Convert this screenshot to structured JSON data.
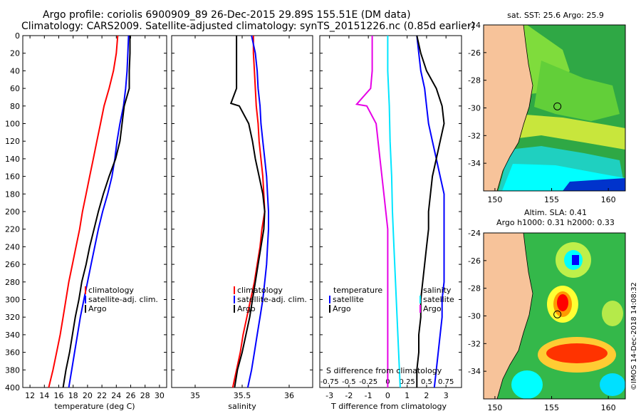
{
  "header": {
    "line1": "Argo profile: coriolis 6900909_89 26-Dec-2015 29.89S 155.51E (DM data)",
    "line2": "Climatology: CARS2009. Satellite-adjusted climatology: synTS_20151226.nc (0.85d earlier)"
  },
  "colors": {
    "climatology": "#ff0000",
    "satellite": "#0000ff",
    "argo": "#000000",
    "t_diff": "#00e5ff",
    "s_diff": "#e600e6",
    "land": "#f7c39a"
  },
  "chart_data": [
    {
      "type": "line",
      "name": "temperature-panel",
      "xlabel": "temperature (deg C)",
      "ylabel": "",
      "xlim": [
        11,
        31
      ],
      "ylim": [
        400,
        0
      ],
      "xticks": [
        12,
        14,
        16,
        18,
        20,
        22,
        24,
        26,
        28,
        30
      ],
      "yticks": [
        0,
        20,
        40,
        60,
        80,
        100,
        120,
        140,
        160,
        180,
        200,
        220,
        240,
        260,
        280,
        300,
        320,
        340,
        360,
        380,
        400
      ],
      "legend": [
        "climatology",
        "satellite-adj. clim.",
        "Argo"
      ],
      "series": [
        {
          "name": "climatology",
          "color": "#ff0000",
          "points": [
            [
              24.2,
              0
            ],
            [
              24.0,
              20
            ],
            [
              23.6,
              40
            ],
            [
              23.0,
              60
            ],
            [
              22.3,
              80
            ],
            [
              21.8,
              100
            ],
            [
              21.3,
              120
            ],
            [
              20.8,
              140
            ],
            [
              20.3,
              160
            ],
            [
              19.8,
              180
            ],
            [
              19.3,
              200
            ],
            [
              18.9,
              220
            ],
            [
              18.4,
              240
            ],
            [
              17.9,
              260
            ],
            [
              17.4,
              280
            ],
            [
              17.0,
              300
            ],
            [
              16.6,
              320
            ],
            [
              16.2,
              340
            ],
            [
              15.7,
              360
            ],
            [
              15.2,
              380
            ],
            [
              14.6,
              400
            ]
          ]
        },
        {
          "name": "satellite-adj. clim.",
          "color": "#0000ff",
          "points": [
            [
              25.7,
              0
            ],
            [
              25.6,
              20
            ],
            [
              25.5,
              40
            ],
            [
              25.3,
              60
            ],
            [
              25.0,
              80
            ],
            [
              24.5,
              100
            ],
            [
              24.1,
              120
            ],
            [
              23.8,
              140
            ],
            [
              23.4,
              160
            ],
            [
              22.8,
              180
            ],
            [
              22.1,
              200
            ],
            [
              21.5,
              220
            ],
            [
              21.0,
              240
            ],
            [
              20.5,
              260
            ],
            [
              20.0,
              280
            ],
            [
              19.5,
              300
            ],
            [
              19.0,
              320
            ],
            [
              18.6,
              340
            ],
            [
              18.2,
              360
            ],
            [
              17.8,
              380
            ],
            [
              17.4,
              400
            ]
          ]
        },
        {
          "name": "Argo",
          "color": "#000000",
          "points": [
            [
              25.9,
              0
            ],
            [
              25.9,
              20
            ],
            [
              25.8,
              40
            ],
            [
              25.8,
              60
            ],
            [
              25.1,
              80
            ],
            [
              24.8,
              100
            ],
            [
              24.5,
              120
            ],
            [
              23.9,
              140
            ],
            [
              23.0,
              160
            ],
            [
              22.2,
              180
            ],
            [
              21.5,
              200
            ],
            [
              20.9,
              220
            ],
            [
              20.3,
              240
            ],
            [
              19.8,
              260
            ],
            [
              19.2,
              280
            ],
            [
              18.8,
              300
            ],
            [
              18.3,
              320
            ],
            [
              17.9,
              340
            ],
            [
              17.5,
              360
            ],
            [
              17.0,
              380
            ],
            [
              16.6,
              400
            ]
          ]
        }
      ]
    },
    {
      "type": "line",
      "name": "salinity-panel",
      "xlabel": "salinity",
      "xlim": [
        34.75,
        36.25
      ],
      "ylim": [
        400,
        0
      ],
      "xticks": [
        35,
        35.5,
        36
      ],
      "xticklabels": [
        "35",
        "35.5",
        "36"
      ],
      "legend": [
        "climatology",
        "satellite-adj. clim.",
        "Argo"
      ],
      "series": [
        {
          "name": "climatology",
          "color": "#ff0000",
          "points": [
            [
              35.62,
              0
            ],
            [
              35.62,
              20
            ],
            [
              35.63,
              40
            ],
            [
              35.64,
              60
            ],
            [
              35.65,
              80
            ],
            [
              35.67,
              100
            ],
            [
              35.68,
              120
            ],
            [
              35.7,
              140
            ],
            [
              35.72,
              160
            ],
            [
              35.73,
              180
            ],
            [
              35.74,
              200
            ],
            [
              35.71,
              220
            ],
            [
              35.69,
              240
            ],
            [
              35.66,
              260
            ],
            [
              35.63,
              280
            ],
            [
              35.59,
              300
            ],
            [
              35.55,
              320
            ],
            [
              35.51,
              340
            ],
            [
              35.48,
              360
            ],
            [
              35.44,
              380
            ],
            [
              35.4,
              400
            ]
          ]
        },
        {
          "name": "satellite-adj. clim.",
          "color": "#0000ff",
          "points": [
            [
              35.6,
              0
            ],
            [
              35.64,
              20
            ],
            [
              35.66,
              40
            ],
            [
              35.67,
              60
            ],
            [
              35.69,
              80
            ],
            [
              35.7,
              100
            ],
            [
              35.72,
              120
            ],
            [
              35.74,
              140
            ],
            [
              35.76,
              160
            ],
            [
              35.77,
              180
            ],
            [
              35.78,
              200
            ],
            [
              35.78,
              220
            ],
            [
              35.77,
              240
            ],
            [
              35.76,
              260
            ],
            [
              35.74,
              280
            ],
            [
              35.72,
              300
            ],
            [
              35.69,
              320
            ],
            [
              35.66,
              340
            ],
            [
              35.63,
              360
            ],
            [
              35.6,
              380
            ],
            [
              35.56,
              400
            ]
          ]
        },
        {
          "name": "Argo",
          "color": "#000000",
          "points": [
            [
              35.44,
              0
            ],
            [
              35.44,
              20
            ],
            [
              35.44,
              40
            ],
            [
              35.44,
              60
            ],
            [
              35.38,
              77
            ],
            [
              35.47,
              80
            ],
            [
              35.57,
              100
            ],
            [
              35.61,
              120
            ],
            [
              35.64,
              140
            ],
            [
              35.68,
              160
            ],
            [
              35.72,
              180
            ],
            [
              35.74,
              200
            ],
            [
              35.73,
              220
            ],
            [
              35.7,
              240
            ],
            [
              35.67,
              260
            ],
            [
              35.64,
              280
            ],
            [
              35.61,
              300
            ],
            [
              35.58,
              320
            ],
            [
              35.54,
              340
            ],
            [
              35.5,
              360
            ],
            [
              35.45,
              380
            ],
            [
              35.42,
              400
            ]
          ]
        }
      ]
    },
    {
      "type": "line",
      "name": "difference-panel",
      "xlabel": "T difference from climatology",
      "xlabel_top": "S difference from climatology",
      "xlim": [
        -3.5,
        3.8
      ],
      "ylim": [
        400,
        0
      ],
      "xticks": [
        -3,
        -2,
        -1,
        0,
        1,
        2,
        3
      ],
      "xticklabels": [
        "-3",
        "-2",
        "-1",
        "0",
        "1",
        "2",
        "3"
      ],
      "sticks": [
        -0.75,
        -0.5,
        -0.25,
        0,
        0.25,
        0.5,
        0.75
      ],
      "sticklabels": [
        "-0.75",
        "-0.5",
        "-0.25",
        "0",
        "0.25",
        "0.5",
        "0.75"
      ],
      "legend_temperature": {
        "title": "temperature",
        "entries": [
          "satellite",
          "Argo"
        ]
      },
      "legend_salinity": {
        "title": "salinity",
        "entries": [
          "satellite",
          "Argo"
        ]
      },
      "series": [
        {
          "name": "T satellite",
          "color": "#0000ff",
          "points": [
            [
              1.5,
              0
            ],
            [
              1.6,
              20
            ],
            [
              1.7,
              40
            ],
            [
              1.9,
              60
            ],
            [
              2.0,
              80
            ],
            [
              2.1,
              100
            ],
            [
              2.3,
              120
            ],
            [
              2.5,
              140
            ],
            [
              2.7,
              160
            ],
            [
              2.9,
              180
            ],
            [
              2.9,
              200
            ],
            [
              2.9,
              220
            ],
            [
              2.9,
              240
            ],
            [
              2.9,
              260
            ],
            [
              2.9,
              280
            ],
            [
              2.8,
              300
            ],
            [
              2.8,
              320
            ],
            [
              2.7,
              340
            ],
            [
              2.6,
              360
            ],
            [
              2.5,
              380
            ],
            [
              2.4,
              400
            ]
          ]
        },
        {
          "name": "T Argo",
          "color": "#000000",
          "points": [
            [
              1.5,
              0
            ],
            [
              1.7,
              20
            ],
            [
              2.0,
              40
            ],
            [
              2.5,
              60
            ],
            [
              2.8,
              80
            ],
            [
              2.9,
              100
            ],
            [
              2.7,
              120
            ],
            [
              2.5,
              140
            ],
            [
              2.3,
              160
            ],
            [
              2.2,
              180
            ],
            [
              2.1,
              200
            ],
            [
              2.1,
              220
            ],
            [
              2.0,
              240
            ],
            [
              1.9,
              260
            ],
            [
              1.8,
              280
            ],
            [
              1.7,
              300
            ],
            [
              1.7,
              320
            ],
            [
              1.6,
              340
            ],
            [
              1.6,
              360
            ],
            [
              1.5,
              380
            ],
            [
              1.5,
              400
            ]
          ]
        },
        {
          "name": "S satellite",
          "color": "#00e5ff",
          "points": [
            [
              0.0,
              0
            ],
            [
              0.0,
              40
            ],
            [
              0.02,
              80
            ],
            [
              0.03,
              120
            ],
            [
              0.05,
              160
            ],
            [
              0.06,
              200
            ],
            [
              0.08,
              240
            ],
            [
              0.1,
              280
            ],
            [
              0.12,
              320
            ],
            [
              0.14,
              360
            ],
            [
              0.16,
              400
            ]
          ]
        },
        {
          "name": "S Argo",
          "color": "#e600e6",
          "points": [
            [
              -0.2,
              0
            ],
            [
              -0.2,
              40
            ],
            [
              -0.22,
              60
            ],
            [
              -0.4,
              78
            ],
            [
              -0.27,
              80
            ],
            [
              -0.15,
              100
            ],
            [
              -0.1,
              140
            ],
            [
              -0.05,
              180
            ],
            [
              0.0,
              220
            ],
            [
              0.0,
              260
            ],
            [
              0.0,
              300
            ],
            [
              0.0,
              340
            ],
            [
              0.0,
              380
            ],
            [
              0.0,
              400
            ]
          ]
        }
      ]
    },
    {
      "type": "heatmap",
      "name": "sst-map",
      "title": "sat. SST: 25.6 Argo: 25.9",
      "xlim": [
        149,
        161.5
      ],
      "ylim": [
        -36,
        -24
      ],
      "xticks": [
        150,
        155,
        160
      ],
      "yticks": [
        -24,
        -26,
        -28,
        -30,
        -32,
        -34
      ],
      "argo_position": [
        155.51,
        -29.89
      ]
    },
    {
      "type": "heatmap",
      "name": "sla-map",
      "title1": "Altim. SLA: 0.41",
      "title2": "Argo h1000: 0.31 h2000: 0.33",
      "xlim": [
        149,
        161.5
      ],
      "ylim": [
        -36,
        -24
      ],
      "xticks": [
        150,
        155,
        160
      ],
      "yticks": [
        -24,
        -26,
        -28,
        -30,
        -32,
        -34
      ],
      "argo_position": [
        155.51,
        -29.89
      ]
    }
  ],
  "footer": {
    "credit": "©IMOS 14-Dec-2018 14:08:32"
  }
}
